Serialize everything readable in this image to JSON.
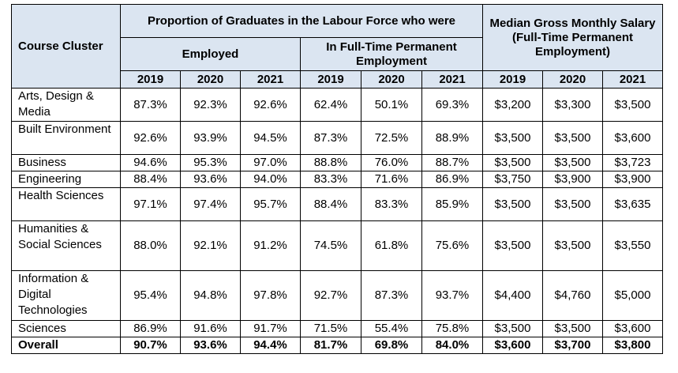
{
  "header": {
    "course_cluster": "Course Cluster",
    "proportion_group": "Proportion of Graduates in the Labour Force who were",
    "employed": "Employed",
    "fulltime": "In Full-Time Permanent Employment",
    "salary": "Median Gross Monthly Salary (Full-Time Permanent Employment)",
    "years": [
      "2019",
      "2020",
      "2021"
    ]
  },
  "rows": [
    {
      "cluster": "Arts, Design & Media",
      "values": [
        "87.3%",
        "92.3%",
        "92.6%",
        "62.4%",
        "50.1%",
        "69.3%",
        "$3,200",
        "$3,300",
        "$3,500"
      ]
    },
    {
      "cluster": "Built Environment",
      "values": [
        "92.6%",
        "93.9%",
        "94.5%",
        "87.3%",
        "72.5%",
        "88.9%",
        "$3,500",
        "$3,500",
        "$3,600"
      ]
    },
    {
      "cluster": "Business",
      "values": [
        "94.6%",
        "95.3%",
        "97.0%",
        "88.8%",
        "76.0%",
        "88.7%",
        "$3,500",
        "$3,500",
        "$3,723"
      ]
    },
    {
      "cluster": "Engineering",
      "values": [
        "88.4%",
        "93.6%",
        "94.0%",
        "83.3%",
        "71.6%",
        "86.9%",
        "$3,750",
        "$3,900",
        "$3,900"
      ]
    },
    {
      "cluster": "Health Sciences",
      "values": [
        "97.1%",
        "97.4%",
        "95.7%",
        "88.4%",
        "83.3%",
        "85.9%",
        "$3,500",
        "$3,500",
        "$3,635"
      ]
    },
    {
      "cluster": "Humanities & Social Sciences",
      "values": [
        "88.0%",
        "92.1%",
        "91.2%",
        "74.5%",
        "61.8%",
        "75.6%",
        "$3,500",
        "$3,500",
        "$3,550"
      ]
    },
    {
      "cluster": "Information & Digital Technologies",
      "values": [
        "95.4%",
        "94.8%",
        "97.8%",
        "92.7%",
        "87.3%",
        "93.7%",
        "$4,400",
        "$4,760",
        "$5,000"
      ]
    },
    {
      "cluster": "Sciences",
      "values": [
        "86.9%",
        "91.6%",
        "91.7%",
        "71.5%",
        "55.4%",
        "75.8%",
        "$3,500",
        "$3,500",
        "$3,600"
      ]
    },
    {
      "cluster": "Overall",
      "values": [
        "90.7%",
        "93.6%",
        "94.4%",
        "81.7%",
        "69.8%",
        "84.0%",
        "$3,600",
        "$3,700",
        "$3,800"
      ],
      "total": true
    }
  ]
}
